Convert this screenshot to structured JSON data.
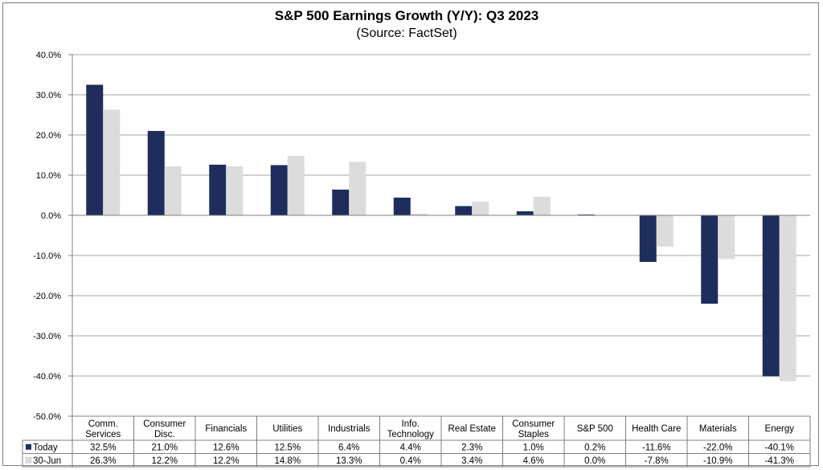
{
  "chart_data": {
    "type": "bar",
    "title": "S&P 500 Earnings Growth (Y/Y): Q3 2023",
    "subtitle": "(Source: FactSet)",
    "categories": [
      [
        "Comm.",
        "Services"
      ],
      [
        "Consumer",
        "Disc."
      ],
      [
        "Financials"
      ],
      [
        "Utilities"
      ],
      [
        "Industrials"
      ],
      [
        "Info.",
        "Technology"
      ],
      [
        "Real Estate"
      ],
      [
        "Consumer",
        "Staples"
      ],
      [
        "S&P 500"
      ],
      [
        "Health Care"
      ],
      [
        "Materials"
      ],
      [
        "Energy"
      ]
    ],
    "series": [
      {
        "name": "Today",
        "color": "#1f2d5c",
        "values": [
          32.5,
          21.0,
          12.6,
          12.5,
          6.4,
          4.4,
          2.3,
          1.0,
          0.2,
          -11.6,
          -22.0,
          -40.1
        ],
        "labels": [
          "32.5%",
          "21.0%",
          "12.6%",
          "12.5%",
          "6.4%",
          "4.4%",
          "2.3%",
          "1.0%",
          "0.2%",
          "-11.6%",
          "-22.0%",
          "-40.1%"
        ]
      },
      {
        "name": "30-Jun",
        "color": "#dcdcdc",
        "values": [
          26.3,
          12.2,
          12.2,
          14.8,
          13.3,
          0.4,
          3.4,
          4.6,
          0.0,
          -7.8,
          -10.9,
          -41.3
        ],
        "labels": [
          "26.3%",
          "12.2%",
          "12.2%",
          "14.8%",
          "13.3%",
          "0.4%",
          "3.4%",
          "4.6%",
          "0.0%",
          "-7.8%",
          "-10.9%",
          "-41.3%"
        ]
      }
    ],
    "ylim": [
      -50,
      40
    ],
    "yticks": [
      40,
      30,
      20,
      10,
      0,
      -10,
      -20,
      -30,
      -40,
      -50
    ],
    "ytick_labels": [
      "40.0%",
      "30.0%",
      "20.0%",
      "10.0%",
      "0.0%",
      "-10.0%",
      "-20.0%",
      "-30.0%",
      "-40.0%",
      "-50.0%"
    ],
    "grid": true,
    "legend": "data-table-left"
  }
}
